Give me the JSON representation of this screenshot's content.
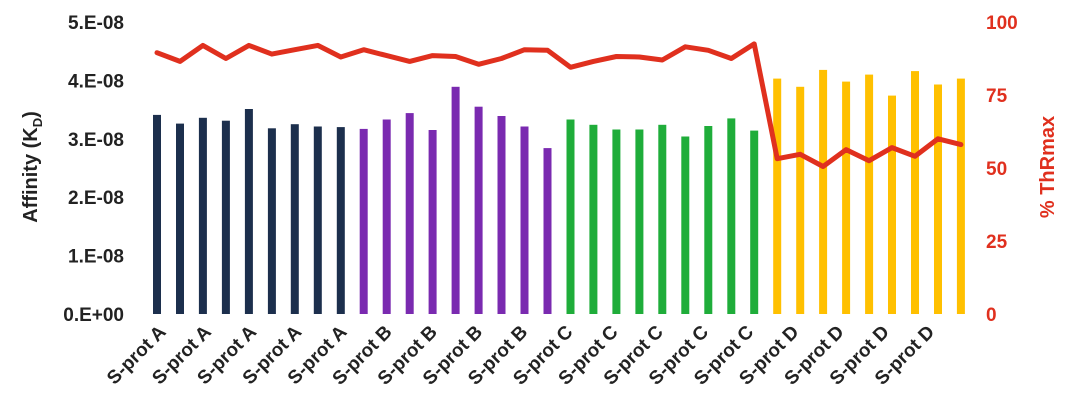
{
  "chart_data": {
    "type": "bar",
    "title": "",
    "ylabel_main": "Affinity (K",
    "ylabel_sub": "D",
    "ylabel_close": ")",
    "y2label": "% ThRmax",
    "ylim": [
      0,
      5e-08
    ],
    "y2lim": [
      0,
      100
    ],
    "yticks": [
      "0.E+00",
      "1.E-08",
      "2.E-08",
      "3.E-08",
      "4.E-08",
      "5.E-08"
    ],
    "y2ticks": [
      "0",
      "25",
      "50",
      "75",
      "100"
    ],
    "category_labels": [
      "S-prot A",
      "S-prot A",
      "S-prot A",
      "S-prot A",
      "S-prot A",
      "S-prot B",
      "S-prot B",
      "S-prot B",
      "S-prot B",
      "S-prot C",
      "S-prot C",
      "S-prot C",
      "S-prot C",
      "S-prot C",
      "S-prot D",
      "S-prot D",
      "S-prot D",
      "S-prot D"
    ],
    "bars": {
      "groups": [
        {
          "group": "S-prot A",
          "color": "#1c2f4d",
          "values": [
            3.41e-08,
            3.26e-08,
            3.36e-08,
            3.31e-08,
            3.51e-08,
            3.18e-08,
            3.25e-08,
            3.21e-08,
            3.2e-08
          ]
        },
        {
          "group": "S-prot B",
          "color": "#7a2ab0",
          "values": [
            3.17e-08,
            3.33e-08,
            3.44e-08,
            3.15e-08,
            3.89e-08,
            3.55e-08,
            3.39e-08,
            3.21e-08,
            2.84e-08
          ]
        },
        {
          "group": "S-prot C",
          "color": "#1fad3a",
          "values": [
            3.33e-08,
            3.24e-08,
            3.16e-08,
            3.16e-08,
            3.24e-08,
            3.04e-08,
            3.22e-08,
            3.35e-08,
            3.14e-08
          ]
        },
        {
          "group": "S-prot D",
          "color": "#ffc000",
          "values": [
            4.03e-08,
            3.89e-08,
            4.18e-08,
            3.98e-08,
            4.1e-08,
            3.74e-08,
            4.16e-08,
            3.93e-08,
            4.03e-08
          ]
        }
      ]
    },
    "line": {
      "color": "#e0301e",
      "axis": "right",
      "values": [
        89.5,
        86.5,
        92,
        87.5,
        92,
        89,
        90.5,
        92,
        88,
        90.5,
        88.5,
        86.5,
        88.5,
        88.2,
        85.5,
        87.5,
        90.5,
        90.3,
        84.5,
        86.5,
        88.2,
        88,
        87,
        91.5,
        90.3,
        87.5,
        92.5,
        53.2,
        54.7,
        50.5,
        56.3,
        52.5,
        57,
        54,
        60,
        58
      ]
    },
    "grid": false,
    "legend": "none"
  }
}
